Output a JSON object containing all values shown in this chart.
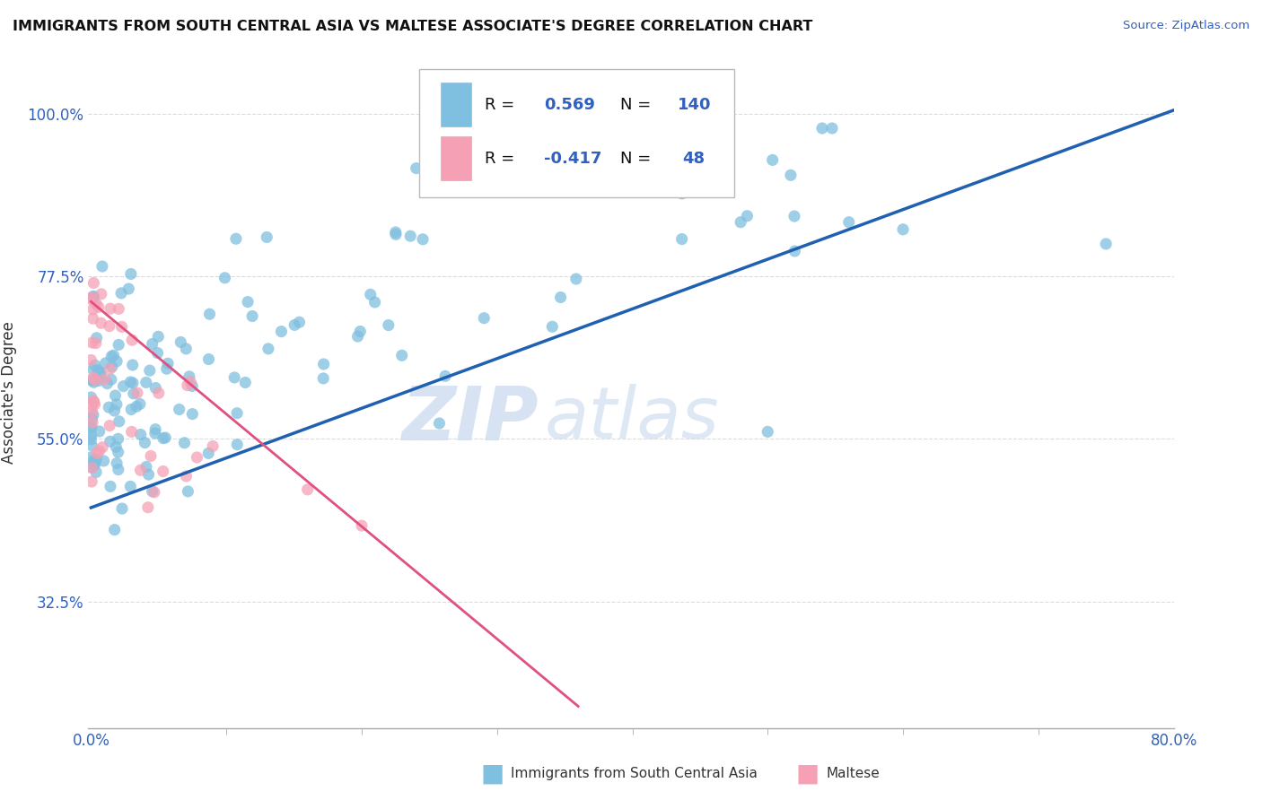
{
  "title": "IMMIGRANTS FROM SOUTH CENTRAL ASIA VS MALTESE ASSOCIATE'S DEGREE CORRELATION CHART",
  "source": "Source: ZipAtlas.com",
  "ylabel": "Associate's Degree",
  "blue_R": 0.569,
  "blue_N": 140,
  "pink_R": -0.417,
  "pink_N": 48,
  "blue_color": "#7fbfdf",
  "pink_color": "#f5a0b5",
  "blue_line_color": "#2060b0",
  "pink_line_color": "#e05080",
  "watermark_zip": "ZIP",
  "watermark_atlas": "atlas",
  "background_color": "#ffffff",
  "grid_color": "#cccccc",
  "ytick_vals": [
    0.325,
    0.55,
    0.775,
    1.0
  ],
  "ytick_labels": [
    "32.5%",
    "55.0%",
    "77.5%",
    "100.0%"
  ],
  "xmin": 0.0,
  "xmax": 0.8,
  "ymin": 0.15,
  "ymax": 1.08,
  "blue_line_x0": 0.0,
  "blue_line_y0": 0.455,
  "blue_line_x1": 0.8,
  "blue_line_y1": 1.005,
  "pink_line_x0": 0.0,
  "pink_line_y0": 0.74,
  "pink_line_x1": 0.36,
  "pink_line_y1": 0.18
}
